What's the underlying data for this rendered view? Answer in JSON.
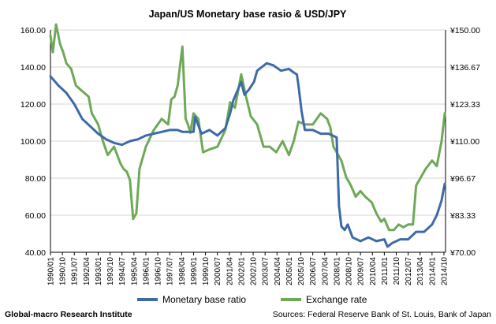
{
  "chart_data": {
    "type": "line",
    "title": "Japan/US Monetary base rasio & USD/JPY",
    "left_axis": {
      "ylim": [
        40,
        160
      ],
      "ticks": [
        "40.00",
        "60.00",
        "80.00",
        "100.00",
        "120.00",
        "140.00",
        "160.00"
      ]
    },
    "right_axis": {
      "ylim": [
        70,
        150
      ],
      "ticks": [
        "¥70.00",
        "¥83.33",
        "¥96.67",
        "¥110.00",
        "¥123.33",
        "¥136.67",
        "¥150.00"
      ]
    },
    "x_ticks": [
      "1990/01",
      "1990/10",
      "1991/07",
      "1992/04",
      "1993/01",
      "1993/10",
      "1994/07",
      "1995/04",
      "1996/01",
      "1996/10",
      "1997/07",
      "1998/04",
      "1999/01",
      "1999/10",
      "2000/07",
      "2001/04",
      "2002/01",
      "2002/10",
      "2003/07",
      "2004/04",
      "2005/01",
      "2005/10",
      "2006/07",
      "2007/04",
      "2008/01",
      "2008/10",
      "2009/07",
      "2010/04",
      "2011/01",
      "2011/10",
      "2012/07",
      "2013/04",
      "2014/01",
      "2014/10"
    ],
    "grid": true,
    "legend_position": "bottom",
    "series": [
      {
        "name": "Monetary base ratio",
        "axis": "left",
        "color": "#3d6aa8",
        "x": [
          1990.0,
          1990.5,
          1991.0,
          1991.5,
          1992.0,
          1992.5,
          1993.0,
          1993.5,
          1994.0,
          1994.5,
          1995.0,
          1995.5,
          1996.0,
          1996.5,
          1997.0,
          1997.5,
          1998.0,
          1998.3,
          1998.6,
          1999.0,
          1999.1,
          1999.5,
          2000.0,
          2000.5,
          2001.0,
          2001.3,
          2001.5,
          2001.8,
          2002.0,
          2002.2,
          2002.5,
          2002.8,
          2003.0,
          2003.3,
          2003.6,
          2004.0,
          2004.5,
          2005.0,
          2005.3,
          2005.5,
          2005.6,
          2005.8,
          2006.0,
          2006.5,
          2007.0,
          2007.5,
          2008.0,
          2008.15,
          2008.3,
          2008.5,
          2008.7,
          2009.0,
          2009.5,
          2010.0,
          2010.5,
          2011.0,
          2011.2,
          2011.5,
          2012.0,
          2012.5,
          2013.0,
          2013.5,
          2014.0,
          2014.3,
          2014.6,
          2014.8
        ],
        "values": [
          135,
          130,
          126,
          120,
          112,
          108,
          104,
          101,
          99,
          98,
          100,
          101,
          103,
          104,
          105,
          106,
          106,
          105,
          105,
          105,
          113,
          104,
          106,
          103,
          107,
          115,
          122,
          128,
          132,
          125,
          128,
          132,
          138,
          140,
          142,
          141,
          138,
          139,
          137,
          136,
          130,
          116,
          106,
          106,
          104,
          104,
          102,
          65,
          54,
          52,
          55,
          48,
          46,
          48,
          46,
          47,
          43,
          45,
          47,
          47,
          51,
          51,
          55,
          60,
          68,
          77
        ]
      },
      {
        "name": "Exchange rate",
        "axis": "right",
        "color": "#6ea957",
        "x": [
          1990.0,
          1990.15,
          1990.35,
          1990.6,
          1990.8,
          1991.0,
          1991.3,
          1991.6,
          1992.0,
          1992.4,
          1992.6,
          1993.0,
          1993.3,
          1993.6,
          1994.0,
          1994.4,
          1994.6,
          1994.8,
          1995.0,
          1995.2,
          1995.4,
          1995.6,
          1996.0,
          1996.5,
          1997.0,
          1997.4,
          1997.6,
          1997.8,
          1998.0,
          1998.3,
          1998.5,
          1998.65,
          1998.8,
          1999.0,
          1999.3,
          1999.6,
          2000.0,
          2000.5,
          2001.0,
          2001.3,
          2001.6,
          2002.0,
          2002.3,
          2002.6,
          2003.0,
          2003.4,
          2003.8,
          2004.2,
          2004.6,
          2005.0,
          2005.3,
          2005.6,
          2006.0,
          2006.5,
          2007.0,
          2007.4,
          2007.6,
          2007.8,
          2008.0,
          2008.3,
          2008.6,
          2008.9,
          2009.2,
          2009.5,
          2009.8,
          2010.2,
          2010.5,
          2010.8,
          2011.0,
          2011.3,
          2011.6,
          2011.9,
          2012.2,
          2012.5,
          2012.8,
          2013.0,
          2013.3,
          2013.6,
          2014.0,
          2014.3,
          2014.6,
          2014.8
        ],
        "values": [
          148,
          142,
          152,
          145,
          142,
          138,
          136,
          130,
          128,
          126,
          120,
          116,
          110,
          105,
          108,
          102,
          100,
          99,
          96,
          82,
          84,
          100,
          108,
          114,
          118,
          116,
          125,
          126,
          130,
          144,
          118,
          116,
          113,
          120,
          118,
          106,
          107,
          108,
          114,
          124,
          122,
          134,
          126,
          119,
          116,
          108,
          108,
          106,
          110,
          105,
          110,
          117,
          116,
          116,
          120,
          118,
          115,
          108,
          106,
          103,
          97,
          94,
          90,
          92,
          90,
          88,
          84,
          81,
          82,
          78,
          78,
          80,
          79,
          80,
          80,
          94,
          97,
          100,
          103,
          101,
          110,
          120
        ]
      }
    ]
  },
  "footer": {
    "left": "Global-macro Research Institute",
    "right": "Sources: Federal Reserve Bank of St. Louis, Bank of Japan"
  }
}
